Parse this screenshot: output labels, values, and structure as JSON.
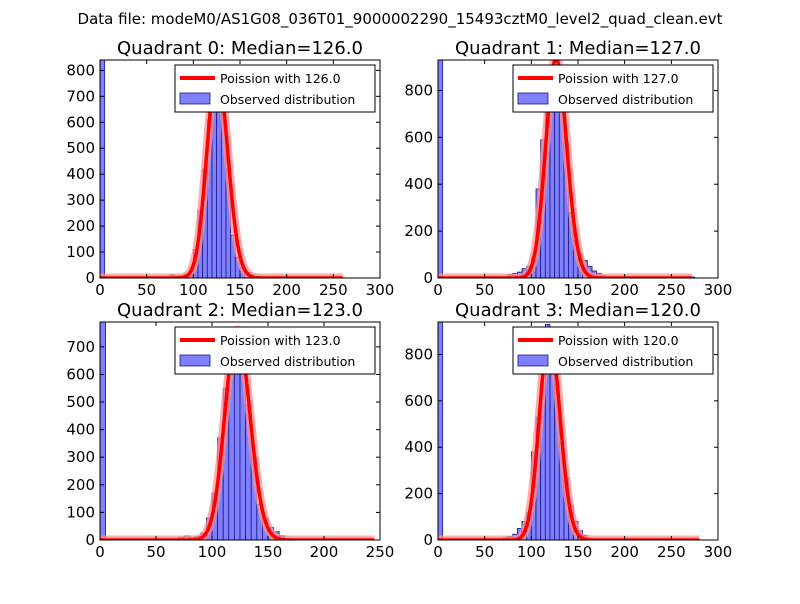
{
  "figure_title": "Data file: modeM0/AS1G08_036T01_9000002290_15493cztM0_level2_quad_clean.evt",
  "colors": {
    "bar_fill": "#7f7fff",
    "bar_edge": "#1a1a80",
    "curve": "#ff0000",
    "curve_highlight": "#ff9090"
  },
  "chart_data": [
    {
      "type": "bar",
      "title": "Quadrant 0: Median=126.0",
      "xlim": [
        0,
        300
      ],
      "ylim": [
        0,
        840
      ],
      "xticks": [
        0,
        50,
        100,
        150,
        200,
        250,
        300
      ],
      "yticks": [
        0,
        100,
        200,
        300,
        400,
        500,
        600,
        700,
        800
      ],
      "legend": {
        "position": "top-right",
        "entries": [
          "Poission with 126.0",
          "Observed distribution"
        ]
      },
      "bin_width": 5,
      "bins": [
        {
          "x": 0,
          "y": 840
        },
        {
          "x": 65,
          "y": 3
        },
        {
          "x": 70,
          "y": 5
        },
        {
          "x": 75,
          "y": 12
        },
        {
          "x": 80,
          "y": 8
        },
        {
          "x": 85,
          "y": 10
        },
        {
          "x": 90,
          "y": 15
        },
        {
          "x": 95,
          "y": 25
        },
        {
          "x": 100,
          "y": 110
        },
        {
          "x": 105,
          "y": 260
        },
        {
          "x": 110,
          "y": 420
        },
        {
          "x": 115,
          "y": 610
        },
        {
          "x": 120,
          "y": 790
        },
        {
          "x": 125,
          "y": 780
        },
        {
          "x": 130,
          "y": 650
        },
        {
          "x": 135,
          "y": 420
        },
        {
          "x": 140,
          "y": 165
        },
        {
          "x": 145,
          "y": 80
        },
        {
          "x": 150,
          "y": 40
        },
        {
          "x": 155,
          "y": 22
        },
        {
          "x": 160,
          "y": 12
        },
        {
          "x": 165,
          "y": 6
        },
        {
          "x": 170,
          "y": 3
        },
        {
          "x": 255,
          "y": 3
        }
      ],
      "poisson": {
        "mean": 126.0,
        "peak": 800,
        "range": [
          0,
          260
        ]
      }
    },
    {
      "type": "bar",
      "title": "Quadrant 1: Median=127.0",
      "xlim": [
        0,
        300
      ],
      "ylim": [
        0,
        930
      ],
      "xticks": [
        0,
        50,
        100,
        150,
        200,
        250,
        300
      ],
      "yticks": [
        0,
        200,
        400,
        600,
        800
      ],
      "legend": {
        "position": "top-right",
        "entries": [
          "Poission with 127.0",
          "Observed distribution"
        ]
      },
      "bin_width": 5,
      "bins": [
        {
          "x": 0,
          "y": 930
        },
        {
          "x": 75,
          "y": 15
        },
        {
          "x": 80,
          "y": 20
        },
        {
          "x": 85,
          "y": 25
        },
        {
          "x": 90,
          "y": 40
        },
        {
          "x": 95,
          "y": 50
        },
        {
          "x": 100,
          "y": 90
        },
        {
          "x": 105,
          "y": 380
        },
        {
          "x": 110,
          "y": 590
        },
        {
          "x": 115,
          "y": 710
        },
        {
          "x": 120,
          "y": 880
        },
        {
          "x": 125,
          "y": 900
        },
        {
          "x": 130,
          "y": 820
        },
        {
          "x": 135,
          "y": 580
        },
        {
          "x": 140,
          "y": 280
        },
        {
          "x": 145,
          "y": 160
        },
        {
          "x": 150,
          "y": 100
        },
        {
          "x": 155,
          "y": 75
        },
        {
          "x": 160,
          "y": 50
        },
        {
          "x": 165,
          "y": 30
        },
        {
          "x": 170,
          "y": 20
        },
        {
          "x": 175,
          "y": 10
        },
        {
          "x": 270,
          "y": 4
        }
      ],
      "poisson": {
        "mean": 127.0,
        "peak": 935,
        "range": [
          0,
          272
        ]
      }
    },
    {
      "type": "bar",
      "title": "Quadrant 2: Median=123.0",
      "xlim": [
        0,
        250
      ],
      "ylim": [
        0,
        790
      ],
      "xticks": [
        0,
        50,
        100,
        150,
        200,
        250
      ],
      "yticks": [
        0,
        100,
        200,
        300,
        400,
        500,
        600,
        700
      ],
      "legend": {
        "position": "top-right",
        "entries": [
          "Poission with 123.0",
          "Observed distribution"
        ]
      },
      "bin_width": 5,
      "bins": [
        {
          "x": 0,
          "y": 790
        },
        {
          "x": 65,
          "y": 5
        },
        {
          "x": 70,
          "y": 10
        },
        {
          "x": 75,
          "y": 15
        },
        {
          "x": 80,
          "y": 10
        },
        {
          "x": 85,
          "y": 12
        },
        {
          "x": 90,
          "y": 25
        },
        {
          "x": 95,
          "y": 80
        },
        {
          "x": 100,
          "y": 170
        },
        {
          "x": 105,
          "y": 370
        },
        {
          "x": 110,
          "y": 550
        },
        {
          "x": 115,
          "y": 720
        },
        {
          "x": 120,
          "y": 750
        },
        {
          "x": 125,
          "y": 700
        },
        {
          "x": 130,
          "y": 490
        },
        {
          "x": 135,
          "y": 300
        },
        {
          "x": 140,
          "y": 130
        },
        {
          "x": 145,
          "y": 80
        },
        {
          "x": 150,
          "y": 45
        },
        {
          "x": 155,
          "y": 30
        },
        {
          "x": 160,
          "y": 15
        },
        {
          "x": 165,
          "y": 5
        }
      ],
      "poisson": {
        "mean": 123.0,
        "peak": 760,
        "range": [
          0,
          245
        ]
      }
    },
    {
      "type": "bar",
      "title": "Quadrant 3: Median=120.0",
      "xlim": [
        0,
        300
      ],
      "ylim": [
        0,
        940
      ],
      "xticks": [
        0,
        50,
        100,
        150,
        200,
        250,
        300
      ],
      "yticks": [
        0,
        200,
        400,
        600,
        800
      ],
      "legend": {
        "position": "top-right",
        "entries": [
          "Poission with 120.0",
          "Observed distribution"
        ]
      },
      "bin_width": 5,
      "bins": [
        {
          "x": 0,
          "y": 940
        },
        {
          "x": 55,
          "y": 5
        },
        {
          "x": 70,
          "y": 10
        },
        {
          "x": 75,
          "y": 15
        },
        {
          "x": 80,
          "y": 25
        },
        {
          "x": 85,
          "y": 50
        },
        {
          "x": 90,
          "y": 80
        },
        {
          "x": 95,
          "y": 120
        },
        {
          "x": 100,
          "y": 380
        },
        {
          "x": 105,
          "y": 530
        },
        {
          "x": 110,
          "y": 680
        },
        {
          "x": 115,
          "y": 930
        },
        {
          "x": 120,
          "y": 870
        },
        {
          "x": 125,
          "y": 670
        },
        {
          "x": 130,
          "y": 420
        },
        {
          "x": 135,
          "y": 270
        },
        {
          "x": 140,
          "y": 150
        },
        {
          "x": 145,
          "y": 80
        },
        {
          "x": 150,
          "y": 40
        },
        {
          "x": 155,
          "y": 20
        },
        {
          "x": 160,
          "y": 8
        }
      ],
      "poisson": {
        "mean": 120.0,
        "peak": 890,
        "range": [
          0,
          280
        ]
      }
    }
  ]
}
